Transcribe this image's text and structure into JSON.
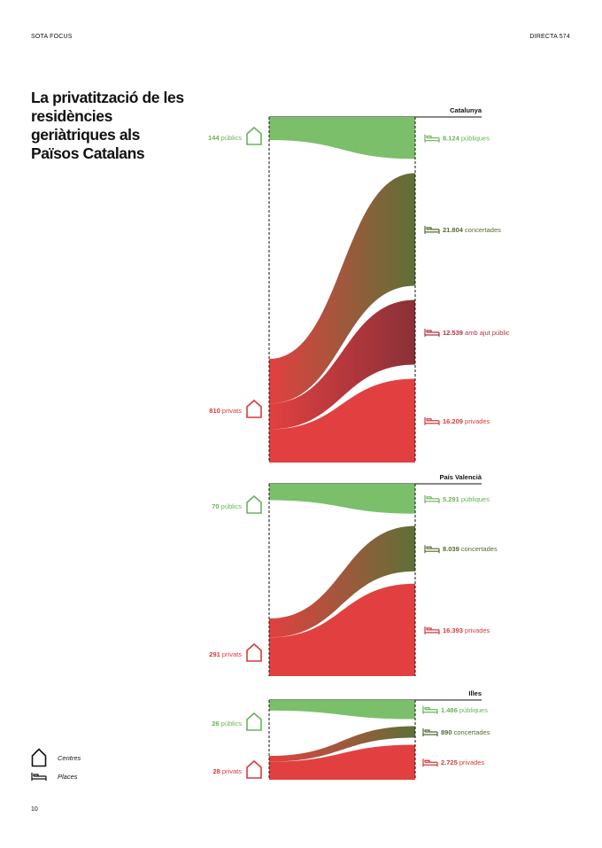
{
  "header": {
    "left": "SOTA FOCUS",
    "right": "DIRECTA 574"
  },
  "title": "La privatització de les residències geriàtriques als Països Catalans",
  "page_number": "10",
  "legend": {
    "centres": "Centres",
    "places": "Places"
  },
  "colors": {
    "public": "#7cbf6b",
    "concertada": "#5e7037",
    "ajut": "#8a3038",
    "privat": "#e24040",
    "label_public": "#6ab35a",
    "label_concertada": "#556b2f",
    "label_ajut": "#b8323a",
    "label_privat": "#d83a3a"
  },
  "chart_data": [
    {
      "type": "sankey",
      "region": "Catalunya",
      "centres": [
        {
          "key": "public",
          "value": 144,
          "value_text": "144",
          "label": "públics"
        },
        {
          "key": "privat",
          "value": 810,
          "value_text": "810",
          "label": "privats"
        }
      ],
      "places": [
        {
          "key": "public",
          "value": 8124,
          "value_text": "8.124",
          "label": "públiques"
        },
        {
          "key": "concertada",
          "value": 21804,
          "value_text": "21.804",
          "label": "concertades"
        },
        {
          "key": "ajut",
          "value": 12539,
          "value_text": "12.539",
          "label": "amb ajut públic"
        },
        {
          "key": "privat",
          "value": 16209,
          "value_text": "16.209",
          "label": "privades"
        }
      ],
      "flows": [
        {
          "from": "public",
          "to": "public"
        },
        {
          "from": "privat",
          "to": "concertada"
        },
        {
          "from": "privat",
          "to": "ajut"
        },
        {
          "from": "privat",
          "to": "privat"
        }
      ]
    },
    {
      "type": "sankey",
      "region": "País Valencià",
      "centres": [
        {
          "key": "public",
          "value": 70,
          "value_text": "70",
          "label": "públics"
        },
        {
          "key": "privat",
          "value": 291,
          "value_text": "291",
          "label": "privats"
        }
      ],
      "places": [
        {
          "key": "public",
          "value": 5291,
          "value_text": "5.291",
          "label": "públiques"
        },
        {
          "key": "concertada",
          "value": 8039,
          "value_text": "8.039",
          "label": "concertades"
        },
        {
          "key": "privat",
          "value": 16393,
          "value_text": "16.393",
          "label": "privades"
        }
      ],
      "flows": [
        {
          "from": "public",
          "to": "public"
        },
        {
          "from": "privat",
          "to": "concertada"
        },
        {
          "from": "privat",
          "to": "privat"
        }
      ]
    },
    {
      "type": "sankey",
      "region": "Illes",
      "centres": [
        {
          "key": "public",
          "value": 26,
          "value_text": "26",
          "label": "públics"
        },
        {
          "key": "privat",
          "value": 28,
          "value_text": "28",
          "label": "privats"
        }
      ],
      "places": [
        {
          "key": "public",
          "value": 1486,
          "value_text": "1.486",
          "label": "públiques"
        },
        {
          "key": "concertada",
          "value": 890,
          "value_text": "890",
          "label": "concertades"
        },
        {
          "key": "privat",
          "value": 2725,
          "value_text": "2.725",
          "label": "privades"
        }
      ],
      "flows": [
        {
          "from": "public",
          "to": "public"
        },
        {
          "from": "privat",
          "to": "concertada"
        },
        {
          "from": "privat",
          "to": "privat"
        }
      ]
    }
  ]
}
